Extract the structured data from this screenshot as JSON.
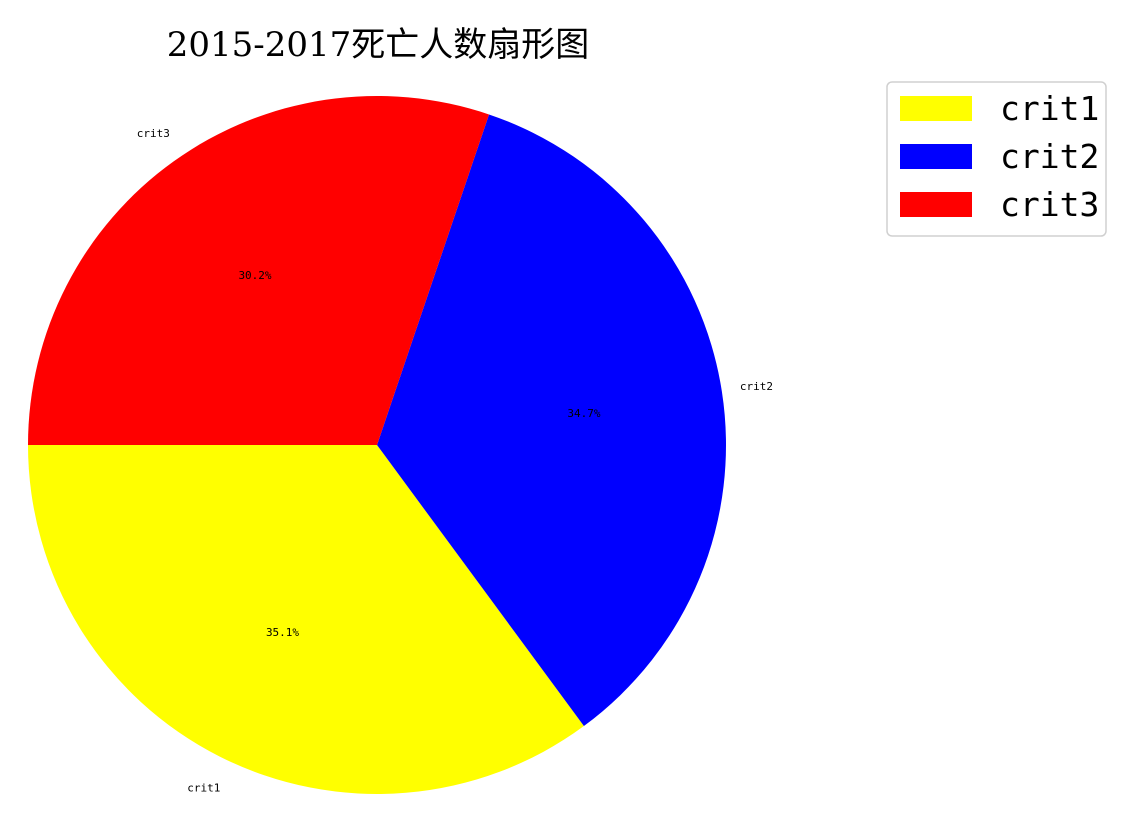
{
  "chart_data": {
    "type": "pie",
    "title": "2015-2017死亡人数扇形图",
    "categories": [
      "crit1",
      "crit2",
      "crit3"
    ],
    "values": [
      35.1,
      34.7,
      30.2
    ],
    "percent_labels": [
      "35.1%",
      "34.7%",
      "30.2%"
    ],
    "colors": [
      "#ffff00",
      "#0000ff",
      "#ff0000"
    ],
    "start_angle_deg": 180,
    "direction": "counterclockwise",
    "legend": {
      "placement": "top-right",
      "entries": [
        "crit1",
        "crit2",
        "crit3"
      ]
    }
  }
}
